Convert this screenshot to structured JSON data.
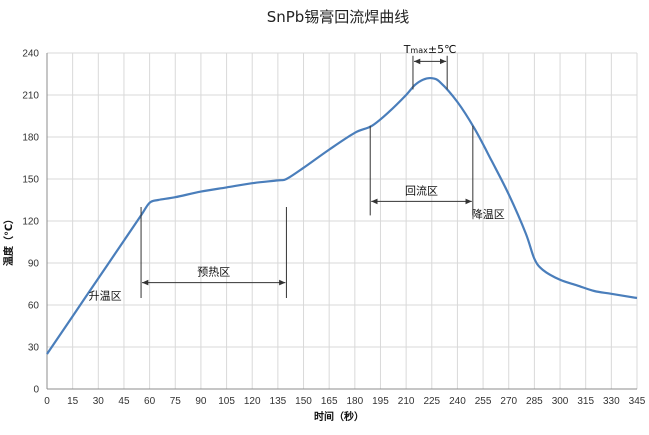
{
  "chart_data": {
    "type": "line",
    "title": "SnPb锡膏回流焊曲线",
    "xlabel": "时间（秒）",
    "ylabel": "温度（℃）",
    "xlim": [
      0,
      345
    ],
    "ylim": [
      0,
      240
    ],
    "x_ticks": [
      0,
      15,
      30,
      45,
      60,
      75,
      90,
      105,
      120,
      135,
      150,
      165,
      180,
      195,
      210,
      225,
      240,
      255,
      270,
      285,
      300,
      315,
      330,
      345
    ],
    "y_ticks": [
      0,
      30,
      60,
      90,
      120,
      150,
      180,
      210,
      240
    ],
    "grid": true,
    "series": [
      {
        "color": "#4a7ebb",
        "x": [
          0,
          15,
          30,
          45,
          55,
          60,
          65,
          75,
          90,
          105,
          120,
          135,
          140,
          150,
          165,
          180,
          190,
          200,
          210,
          215,
          220,
          225,
          230,
          240,
          250,
          260,
          270,
          280,
          285,
          290,
          300,
          310,
          320,
          330,
          345
        ],
        "y": [
          25,
          52,
          79,
          106,
          124,
          133,
          135,
          137,
          141,
          144,
          147,
          149,
          150,
          158,
          171,
          183,
          188,
          198,
          210,
          217,
          221,
          222,
          219,
          205,
          186,
          163,
          139,
          111,
          93,
          85,
          78,
          74,
          70,
          68,
          65
        ]
      }
    ],
    "annotations": {
      "preheat": {
        "label": "预热区",
        "x_start": 55,
        "x_end": 140,
        "y_arrow": 76,
        "y_line_top": 130,
        "y_line_bottom": 65
      },
      "reflow": {
        "label": "回流区",
        "x_start": 189,
        "x_end": 249,
        "y_arrow": 134,
        "y_line_top": 188,
        "y_line_bottom": 124
      },
      "tmax": {
        "label_main": "T",
        "label_sub": "max",
        "label_rest": "±5℃",
        "x_start": 214,
        "x_end": 234,
        "y_arrow": 234,
        "y_line_top": 238,
        "y_line_bottom": 214
      },
      "ramp_up": {
        "label": "升温区",
        "x": 34,
        "y": 64
      },
      "cooling": {
        "label": "降温区",
        "x": 258,
        "y": 122
      }
    }
  },
  "colors": {
    "line": "#4a7ebb",
    "grid": "#d9d9d9",
    "axis": "#8c8c8c",
    "annotation": "#333333"
  }
}
